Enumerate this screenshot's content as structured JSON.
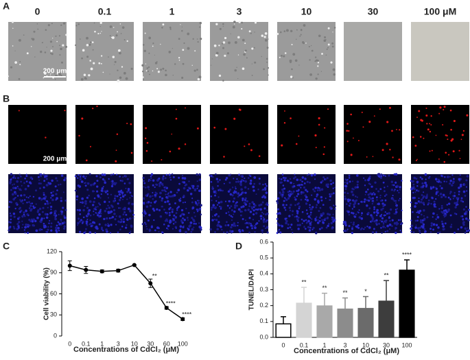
{
  "panel_labels": [
    "A",
    "B",
    "C",
    "D"
  ],
  "concentrations": [
    "0",
    "0.1",
    "1",
    "3",
    "10",
    "30",
    "100 μM"
  ],
  "scale_bars": [
    "200 μm",
    "200 μm"
  ],
  "chart_data": [
    {
      "type": "line",
      "ylabel": "Cell viability (%)",
      "xlabel": "Concentrations of CdCl₂ (μM)",
      "categories": [
        "0",
        "0.1",
        "1",
        "3",
        "10",
        "30",
        "60",
        "100"
      ],
      "values": [
        100,
        94,
        92,
        93,
        101,
        75,
        40,
        24
      ],
      "errors": [
        7,
        5,
        2,
        2,
        1,
        6,
        2,
        2
      ],
      "annotations": [
        null,
        null,
        null,
        null,
        null,
        "**",
        "****",
        "****"
      ],
      "color": "#000000",
      "ylim": [
        0,
        120
      ],
      "yticks": [
        0,
        30,
        60,
        90,
        120
      ]
    },
    {
      "type": "bar",
      "ylabel": "TUNEL/DAPI",
      "xlabel": "Concentrations of CdCl₂ (μM)",
      "categories": [
        "0",
        "0.1",
        "1",
        "3",
        "10",
        "30",
        "100"
      ],
      "values": [
        0.085,
        0.215,
        0.198,
        0.178,
        0.182,
        0.228,
        0.423
      ],
      "errors": [
        0.045,
        0.1,
        0.08,
        0.07,
        0.075,
        0.13,
        0.065
      ],
      "annotations": [
        null,
        "**",
        "**",
        "**",
        "*",
        "**",
        "****"
      ],
      "colors": [
        "#ffffff",
        "#d4d4d4",
        "#a9a9a9",
        "#8c8c8c",
        "#6b6b6b",
        "#3d3d3d",
        "#000000"
      ],
      "ylim": [
        0,
        0.6
      ],
      "yticks": [
        {
          "value": 0,
          "label": "0.0"
        },
        0.1,
        0.2,
        0.3,
        0.4,
        0.5,
        0.6
      ]
    }
  ]
}
